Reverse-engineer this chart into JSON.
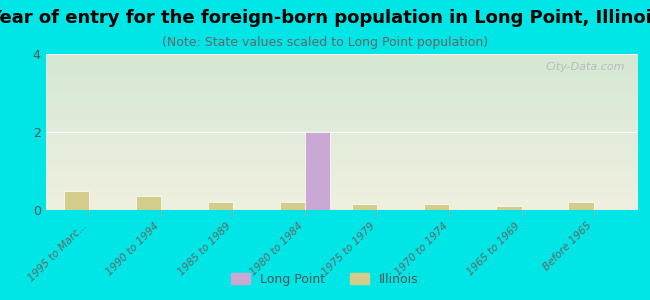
{
  "title": "Year of entry for the foreign-born population in Long Point, Illinois",
  "subtitle": "(Note: State values scaled to Long Point population)",
  "categories": [
    "1995 to Marc...",
    "1990 to 1994",
    "1985 to 1989",
    "1980 to 1984",
    "1975 to 1979",
    "1970 to 1974",
    "1965 to 1969",
    "Before 1965"
  ],
  "longpoint_values": [
    0,
    0,
    0,
    2,
    0,
    0,
    0,
    0
  ],
  "illinois_values": [
    0.5,
    0.35,
    0.2,
    0.2,
    0.15,
    0.15,
    0.1,
    0.2
  ],
  "longpoint_color": "#c9a8d4",
  "illinois_color": "#d4cc8a",
  "background_color": "#00e5e5",
  "plot_bg_top": "#d4e8d4",
  "plot_bg_bottom": "#f0f0e0",
  "ylim": [
    0,
    4
  ],
  "yticks": [
    0,
    2,
    4
  ],
  "bar_width": 0.35,
  "legend_longpoint": "Long Point",
  "legend_illinois": "Illinois",
  "watermark": "City-Data.com",
  "title_fontsize": 13,
  "subtitle_fontsize": 9
}
